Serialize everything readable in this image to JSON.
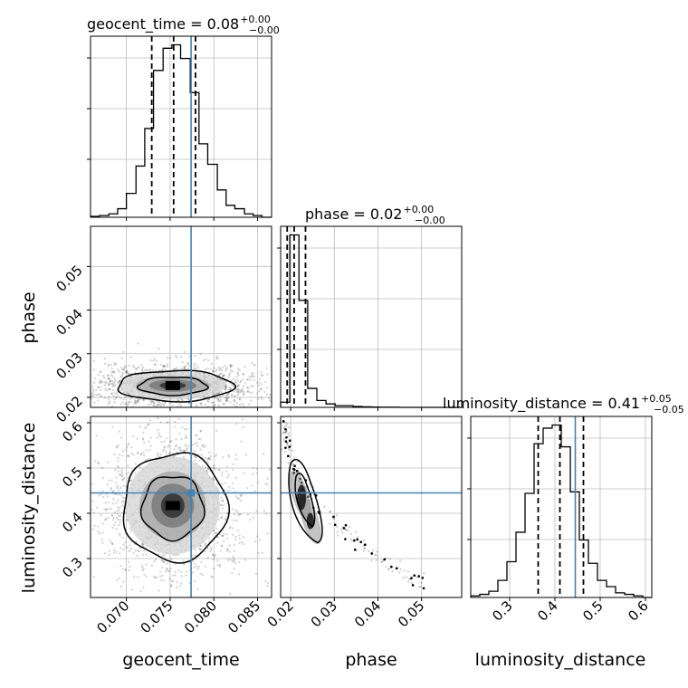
{
  "chart_data": {
    "type": "corner",
    "parameters": [
      "geocent_time",
      "phase",
      "luminosity_distance"
    ],
    "injection": {
      "geocent_time": 0.0774,
      "phase": 0.0171,
      "luminosity_distance": 0.445
    },
    "accent_color": "#4682b4",
    "titles": [
      {
        "param": "geocent_time",
        "main": "geocent_time = 0.08",
        "plus": "+0.00",
        "minus": "−0.00"
      },
      {
        "param": "phase",
        "main": "phase = 0.02",
        "plus": "+0.00",
        "minus": "−0.00"
      },
      {
        "param": "luminosity_distance",
        "main": "luminosity_distance = 0.41",
        "plus": "+0.05",
        "minus": "−0.05"
      }
    ],
    "axis_labels": {
      "x": [
        "geocent_time",
        "phase",
        "luminosity_distance"
      ],
      "y": [
        "phase",
        "luminosity_distance"
      ]
    },
    "ranges": {
      "geocent_time": [
        0.0659,
        0.0866
      ],
      "phase": [
        0.0177,
        0.0592
      ],
      "luminosity_distance": [
        0.214,
        0.614
      ]
    },
    "ticks": {
      "geocent_time": [
        "0.070",
        "0.075",
        "0.080",
        "0.085"
      ],
      "phase": [
        "0.02",
        "0.03",
        "0.04",
        "0.05"
      ],
      "luminosity_distance": [
        "0.3",
        "0.4",
        "0.5",
        "0.6"
      ]
    },
    "quantiles": {
      "geocent_time": [
        0.0729,
        0.0754,
        0.0779
      ],
      "phase": [
        0.0192,
        0.0208,
        0.0234
      ],
      "luminosity_distance": [
        0.363,
        0.411,
        0.463
      ]
    },
    "histograms": {
      "geocent_time": {
        "edges": [
          0.0659,
          0.0669,
          0.068,
          0.069,
          0.07,
          0.0711,
          0.0721,
          0.0731,
          0.0742,
          0.0752,
          0.0762,
          0.0773,
          0.0783,
          0.0793,
          0.0804,
          0.0814,
          0.0824,
          0.0835,
          0.0845,
          0.0855,
          0.0866
        ],
        "counts": [
          0.5,
          1,
          2,
          5,
          14,
          30,
          52,
          86,
          99,
          101,
          93,
          73,
          43,
          31,
          16,
          7,
          5,
          2,
          1,
          0
        ]
      },
      "phase": {
        "edges": [
          0.0177,
          0.0198,
          0.0219,
          0.0239,
          0.026,
          0.0281,
          0.0302,
          0.0322,
          0.0343,
          0.0364,
          0.0385,
          0.0405,
          0.0426,
          0.0447,
          0.0468,
          0.0488,
          0.0509,
          0.053,
          0.0551,
          0.0571,
          0.0592
        ],
        "counts": [
          3,
          100,
          62,
          11,
          4,
          2,
          1,
          1,
          0.5,
          0.3,
          0.2,
          0.1,
          0.1,
          0,
          0,
          0,
          0,
          0,
          0,
          0
        ]
      },
      "luminosity_distance": {
        "edges": [
          0.214,
          0.234,
          0.254,
          0.274,
          0.294,
          0.314,
          0.334,
          0.354,
          0.374,
          0.394,
          0.414,
          0.434,
          0.454,
          0.474,
          0.494,
          0.514,
          0.534,
          0.554,
          0.574,
          0.594,
          0.614
        ],
        "counts": [
          1,
          2,
          4,
          11,
          23,
          42,
          67,
          99,
          109,
          111,
          97,
          68,
          37,
          22,
          11,
          7,
          3,
          2,
          1,
          0
        ]
      }
    },
    "contours": {
      "phase_vs_geocent_time": {
        "x": "geocent_time",
        "y": "phase",
        "center": [
          0.0753,
          0.0227
        ],
        "sx": 0.003,
        "sy": 0.0016
      },
      "distance_vs_geocent_time": {
        "x": "geocent_time",
        "y": "luminosity_distance",
        "center": [
          0.0753,
          0.417
        ],
        "sx": 0.0027,
        "sy": 0.054
      },
      "distance_vs_phase": {
        "x": "phase",
        "y": "luminosity_distance",
        "center": [
          0.0222,
          0.425
        ],
        "sx": 0.0013,
        "sy": 0.046
      }
    },
    "grid": true
  }
}
